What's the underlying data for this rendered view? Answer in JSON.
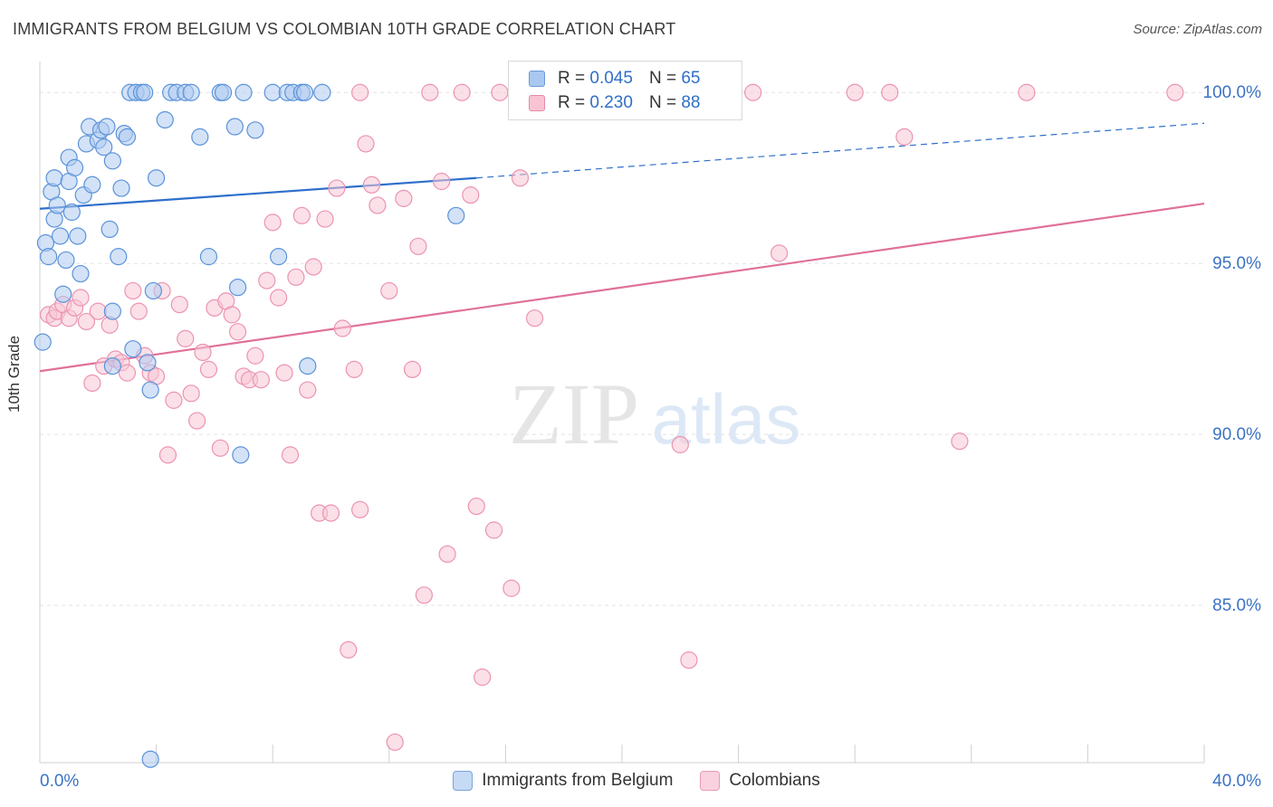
{
  "title": "IMMIGRANTS FROM BELGIUM VS COLOMBIAN 10TH GRADE CORRELATION CHART",
  "source": "Source: ZipAtlas.com",
  "watermark": {
    "zip": "ZIP",
    "atlas": "atlas"
  },
  "legend_top": {
    "rows": [
      {
        "r_label": "R =",
        "r_value": "0.045",
        "n_label": "N =",
        "n_value": "65",
        "color": "#a9c8f0",
        "border": "#6b9ad8"
      },
      {
        "r_label": "R =",
        "r_value": "0.230",
        "n_label": "N =",
        "n_value": "88",
        "color": "#f8c3d3",
        "border": "#e48aa8"
      }
    ]
  },
  "legend_bottom": [
    {
      "label": "Immigrants from Belgium",
      "color": "#c5daf5",
      "border": "#7aa3dc"
    },
    {
      "label": "Colombians",
      "color": "#fad2df",
      "border": "#e89ab4"
    }
  ],
  "chart_data": {
    "type": "scatter",
    "title": "IMMIGRANTS FROM BELGIUM VS COLOMBIAN 10TH GRADE CORRELATION CHART",
    "xlabel": "",
    "ylabel": "10th Grade",
    "xlim": [
      0,
      40
    ],
    "ylim": [
      80.4,
      100.8
    ],
    "x_tick_labels": [
      "0.0%",
      "40.0%"
    ],
    "y_ticks": [
      85,
      90,
      95,
      100
    ],
    "y_tick_labels": [
      "85.0%",
      "90.0%",
      "95.0%",
      "100.0%"
    ],
    "grid": true,
    "legend_position": "top-center",
    "colors": {
      "belgium": "#5b93d9",
      "belgium_line": "#2e6fcb",
      "colombians": "#ec93b1",
      "colombians_line": "#e0709a",
      "tick_label": "#3b73c4"
    },
    "series": [
      {
        "name": "Immigrants from Belgium",
        "r": 0.045,
        "n": 65,
        "trend": {
          "x": [
            0,
            15
          ],
          "y": [
            96.6,
            97.5
          ],
          "extend_to": 40,
          "extend_y": 99.1
        },
        "points": [
          [
            0.2,
            95.6
          ],
          [
            0.3,
            95.2
          ],
          [
            0.4,
            97.1
          ],
          [
            0.5,
            97.5
          ],
          [
            0.5,
            96.3
          ],
          [
            0.6,
            96.7
          ],
          [
            0.7,
            95.8
          ],
          [
            0.8,
            94.1
          ],
          [
            0.9,
            95.1
          ],
          [
            1.0,
            98.1
          ],
          [
            1.0,
            97.4
          ],
          [
            1.1,
            96.5
          ],
          [
            1.2,
            97.8
          ],
          [
            1.3,
            95.8
          ],
          [
            1.4,
            94.7
          ],
          [
            1.5,
            97.0
          ],
          [
            1.6,
            98.5
          ],
          [
            1.7,
            99.0
          ],
          [
            1.8,
            97.3
          ],
          [
            2.0,
            98.6
          ],
          [
            2.1,
            98.9
          ],
          [
            2.2,
            98.4
          ],
          [
            2.3,
            99.0
          ],
          [
            2.4,
            96.0
          ],
          [
            2.5,
            98.0
          ],
          [
            2.7,
            95.2
          ],
          [
            2.9,
            98.8
          ],
          [
            3.0,
            98.7
          ],
          [
            2.5,
            93.6
          ],
          [
            2.5,
            92.0
          ],
          [
            3.1,
            100.0
          ],
          [
            3.3,
            100.0
          ],
          [
            3.5,
            100.0
          ],
          [
            3.6,
            100.0
          ],
          [
            2.8,
            97.2
          ],
          [
            4.0,
            97.5
          ],
          [
            4.3,
            99.2
          ],
          [
            4.5,
            100.0
          ],
          [
            4.7,
            100.0
          ],
          [
            5.0,
            100.0
          ],
          [
            5.2,
            100.0
          ],
          [
            5.5,
            98.7
          ],
          [
            3.9,
            94.2
          ],
          [
            3.7,
            92.1
          ],
          [
            3.2,
            92.5
          ],
          [
            3.8,
            91.3
          ],
          [
            3.8,
            80.5
          ],
          [
            6.2,
            100.0
          ],
          [
            6.3,
            100.0
          ],
          [
            6.7,
            99.0
          ],
          [
            6.8,
            94.3
          ],
          [
            6.9,
            89.4
          ],
          [
            7.4,
            98.9
          ],
          [
            7.0,
            100.0
          ],
          [
            8.0,
            100.0
          ],
          [
            8.5,
            100.0
          ],
          [
            8.7,
            100.0
          ],
          [
            9.0,
            100.0
          ],
          [
            9.1,
            100.0
          ],
          [
            9.7,
            100.0
          ],
          [
            5.8,
            95.2
          ],
          [
            8.2,
            95.2
          ],
          [
            9.2,
            92.0
          ],
          [
            14.3,
            96.4
          ],
          [
            0.1,
            92.7
          ]
        ]
      },
      {
        "name": "Colombians",
        "r": 0.23,
        "n": 88,
        "trend": {
          "x": [
            0,
            40
          ],
          "y": [
            91.85,
            96.75
          ]
        },
        "points": [
          [
            0.3,
            93.5
          ],
          [
            0.5,
            93.4
          ],
          [
            0.6,
            93.6
          ],
          [
            0.8,
            93.8
          ],
          [
            1.0,
            93.4
          ],
          [
            1.2,
            93.7
          ],
          [
            1.4,
            94.0
          ],
          [
            1.6,
            93.3
          ],
          [
            1.8,
            91.5
          ],
          [
            2.0,
            93.6
          ],
          [
            2.2,
            92.0
          ],
          [
            2.4,
            93.2
          ],
          [
            2.6,
            92.2
          ],
          [
            2.8,
            92.1
          ],
          [
            3.0,
            91.8
          ],
          [
            3.2,
            94.2
          ],
          [
            3.4,
            93.6
          ],
          [
            3.6,
            92.3
          ],
          [
            3.8,
            91.8
          ],
          [
            4.0,
            91.7
          ],
          [
            4.2,
            94.2
          ],
          [
            4.4,
            89.4
          ],
          [
            4.6,
            91.0
          ],
          [
            4.8,
            93.8
          ],
          [
            5.0,
            92.8
          ],
          [
            5.2,
            91.2
          ],
          [
            5.4,
            90.4
          ],
          [
            5.6,
            92.4
          ],
          [
            5.8,
            91.9
          ],
          [
            6.0,
            93.7
          ],
          [
            6.2,
            89.6
          ],
          [
            6.4,
            93.9
          ],
          [
            6.6,
            93.5
          ],
          [
            6.8,
            93.0
          ],
          [
            7.0,
            91.7
          ],
          [
            7.2,
            91.6
          ],
          [
            7.4,
            92.3
          ],
          [
            7.6,
            91.6
          ],
          [
            7.8,
            94.5
          ],
          [
            8.0,
            96.2
          ],
          [
            8.2,
            94.0
          ],
          [
            8.4,
            91.8
          ],
          [
            8.6,
            89.4
          ],
          [
            8.8,
            94.6
          ],
          [
            9.0,
            96.4
          ],
          [
            9.2,
            91.3
          ],
          [
            9.4,
            94.9
          ],
          [
            9.6,
            87.7
          ],
          [
            9.8,
            96.3
          ],
          [
            10.0,
            87.7
          ],
          [
            10.2,
            97.2
          ],
          [
            10.4,
            93.1
          ],
          [
            10.6,
            83.7
          ],
          [
            10.8,
            91.9
          ],
          [
            11.0,
            87.8
          ],
          [
            11.2,
            98.5
          ],
          [
            11.4,
            97.3
          ],
          [
            11.6,
            96.7
          ],
          [
            12.0,
            94.2
          ],
          [
            12.2,
            81.0
          ],
          [
            12.5,
            96.9
          ],
          [
            12.8,
            91.9
          ],
          [
            13.0,
            95.5
          ],
          [
            13.2,
            85.3
          ],
          [
            13.4,
            100.0
          ],
          [
            13.8,
            97.4
          ],
          [
            14.0,
            86.5
          ],
          [
            14.5,
            100.0
          ],
          [
            14.8,
            97.0
          ],
          [
            15.0,
            87.9
          ],
          [
            15.2,
            82.9
          ],
          [
            15.6,
            87.2
          ],
          [
            15.8,
            100.0
          ],
          [
            16.2,
            85.5
          ],
          [
            16.5,
            97.5
          ],
          [
            17.0,
            93.4
          ],
          [
            18.0,
            100.0
          ],
          [
            22.0,
            89.7
          ],
          [
            22.3,
            83.4
          ],
          [
            24.5,
            100.0
          ],
          [
            25.4,
            95.3
          ],
          [
            28.0,
            100.0
          ],
          [
            29.2,
            100.0
          ],
          [
            29.7,
            98.7
          ],
          [
            31.6,
            89.8
          ],
          [
            33.9,
            100.0
          ],
          [
            39.0,
            100.0
          ],
          [
            11.0,
            100.0
          ]
        ]
      }
    ]
  }
}
